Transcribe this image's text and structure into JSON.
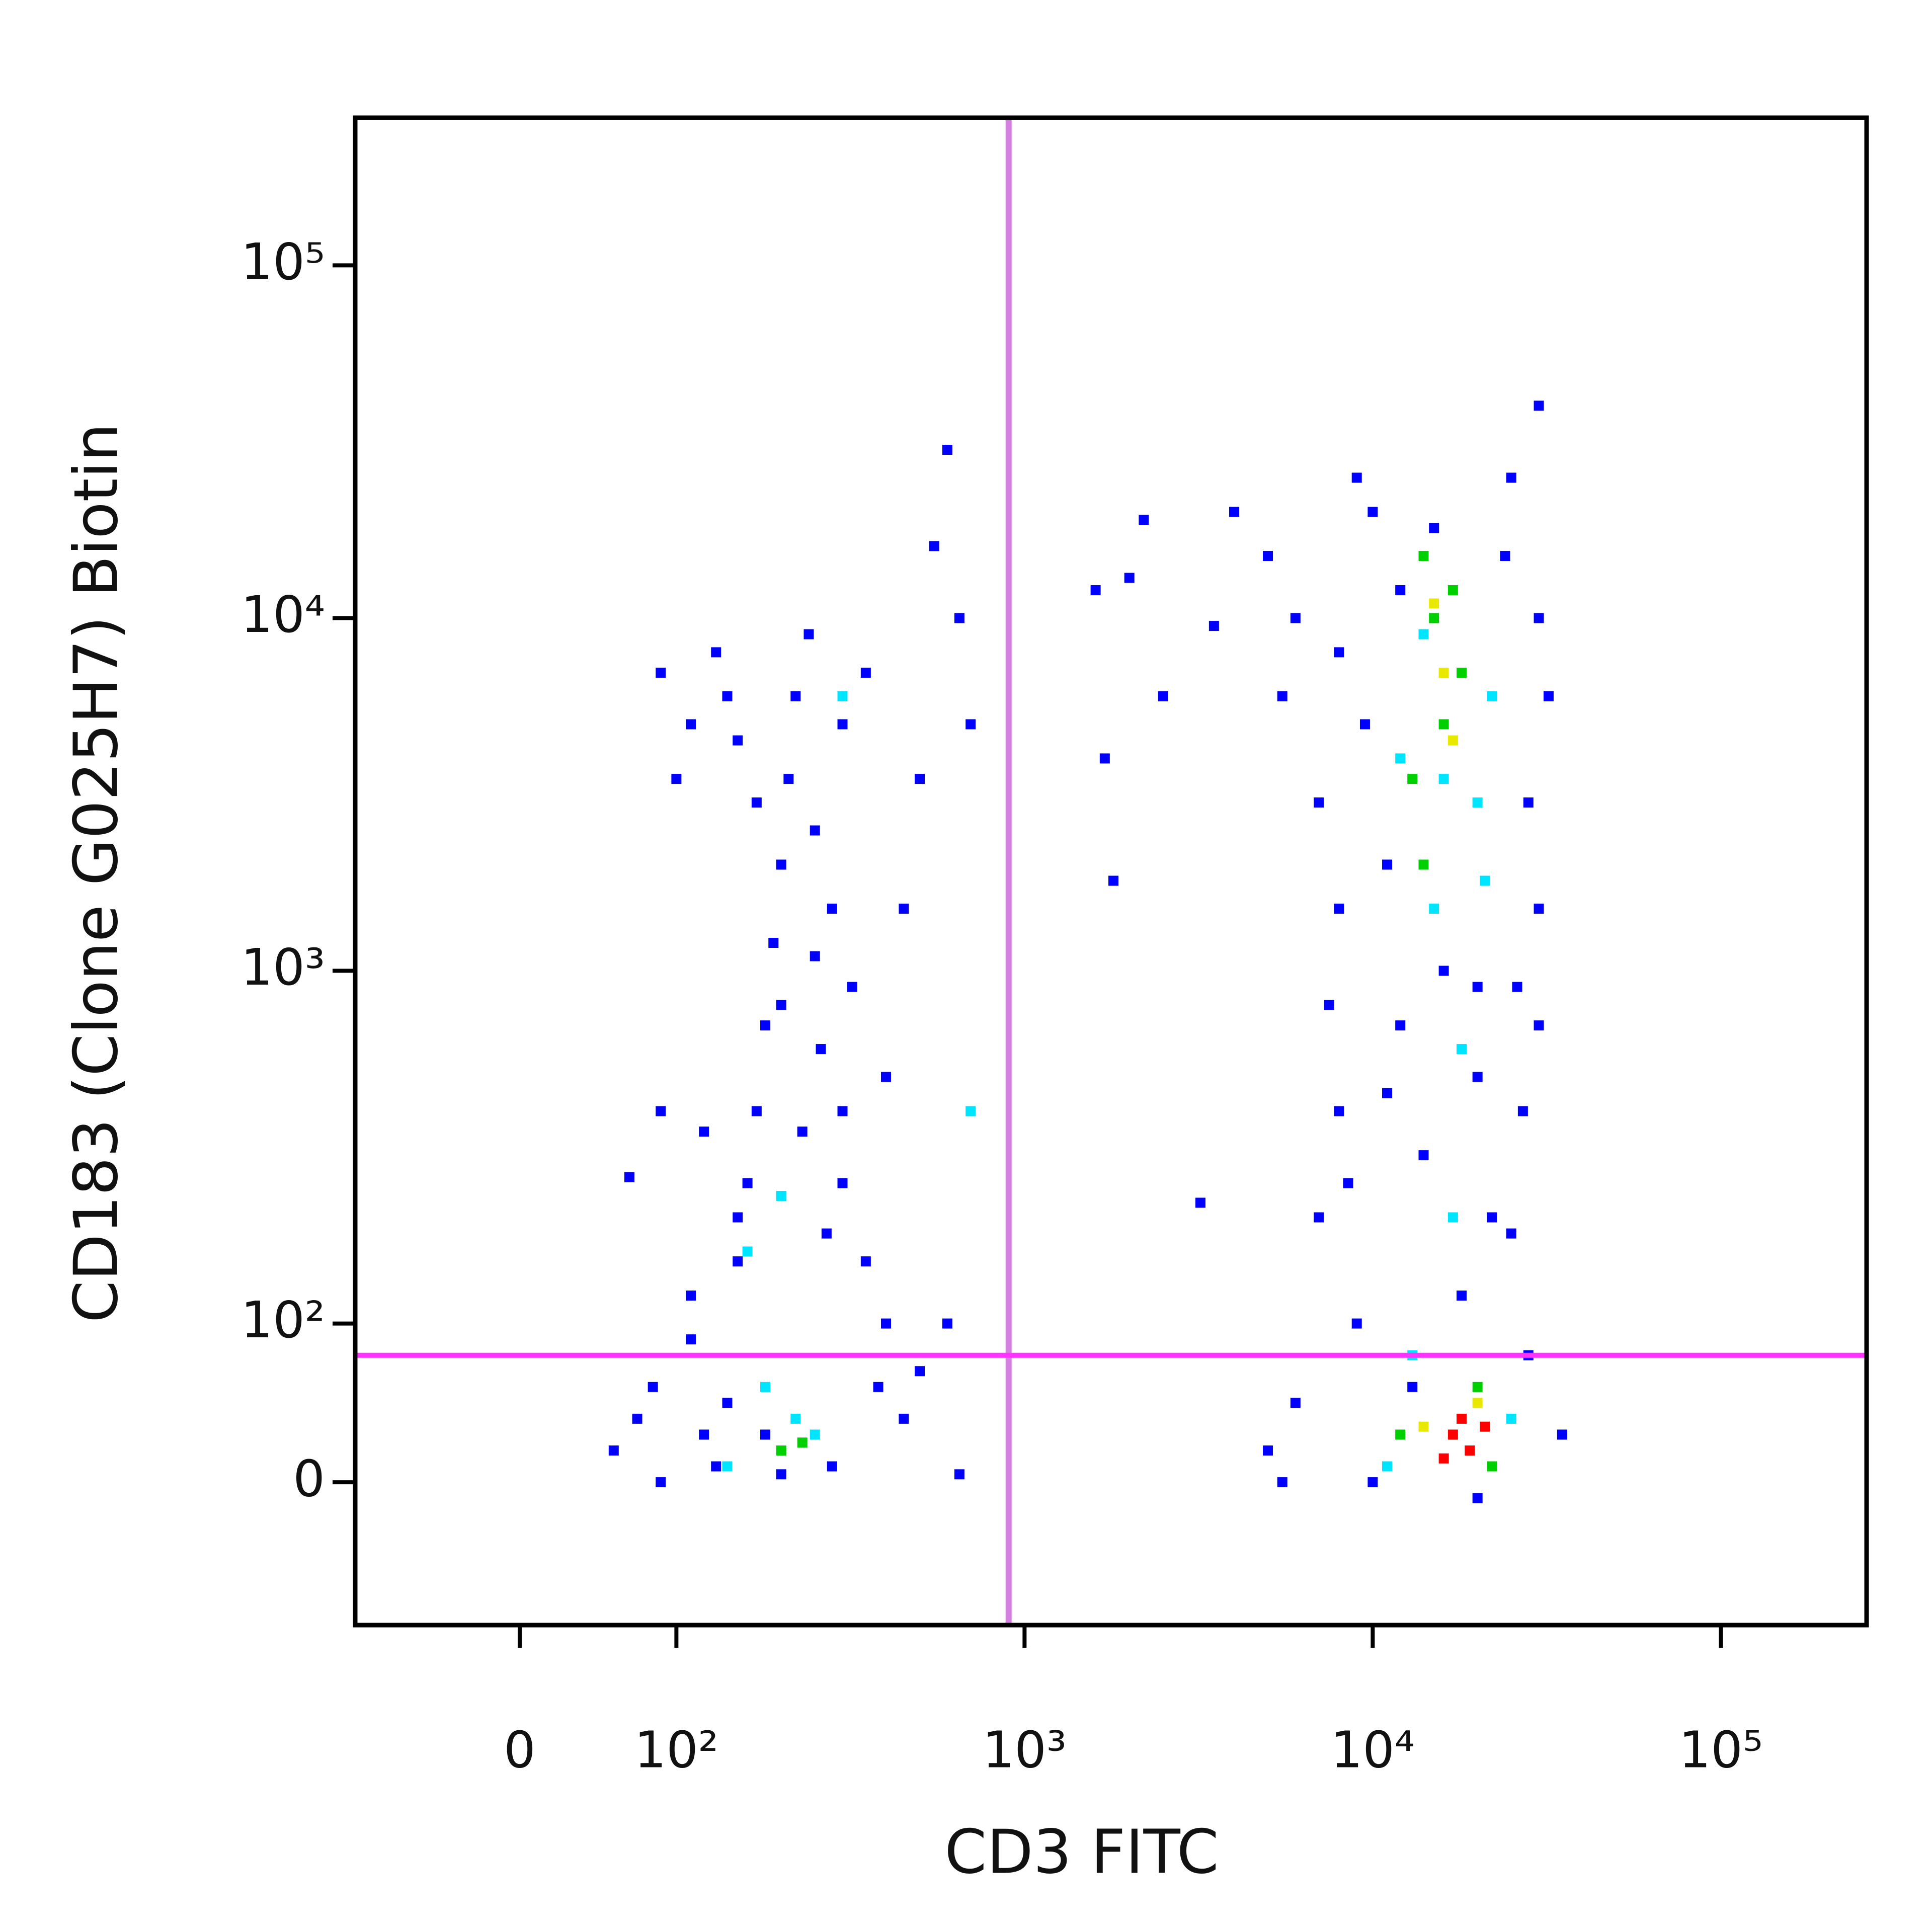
{
  "chart_data": {
    "type": "scatter",
    "xlabel": "CD3 FITC",
    "ylabel": "CD183 (Clone G025H7) Biotin",
    "scale": "biexponential",
    "xlim": [
      -105,
      262144
    ],
    "ylim": [
      -90,
      262144
    ],
    "xticks": [
      0,
      {
        "value": 100,
        "label": "10²"
      },
      {
        "value": 1000,
        "label": "10³"
      },
      {
        "value": 10000,
        "label": "10⁴"
      },
      {
        "value": 100000,
        "label": "10⁵"
      }
    ],
    "yticks": [
      0,
      {
        "value": 100,
        "label": "10²"
      },
      {
        "value": 1000,
        "label": "10³"
      },
      {
        "value": 10000,
        "label": "10⁴"
      },
      {
        "value": 100000,
        "label": "10⁵"
      }
    ],
    "vlines": [
      {
        "x": 900,
        "color": "#d580e0"
      }
    ],
    "hlines": [
      {
        "y": 80,
        "color": "#ff33ff"
      }
    ],
    "series": [
      {
        "color": "#0000ff",
        "x": [
          60,
          75,
          90,
          85,
          110,
          120,
          130,
          140,
          150,
          160,
          170,
          180,
          190,
          200,
          210,
          220,
          240,
          130,
          140,
          110,
          90,
          100,
          150,
          170,
          250,
          300,
          350,
          280,
          320,
          260,
          230,
          300,
          350,
          400,
          380,
          450,
          500,
          280,
          200,
          180,
          150,
          120,
          110,
          90,
          70,
          200,
          250,
          300,
          400,
          270,
          600,
          550,
          650,
          700,
          500,
          450,
          600,
          650,
          1700,
          1600,
          2200,
          2500,
          3500,
          1800,
          3200,
          2000,
          4000,
          5000,
          6000,
          5500,
          7000,
          8000,
          7500,
          8000,
          7000,
          9000,
          6000,
          5000,
          5500,
          8000,
          9000,
          10000,
          12000,
          25000,
          30000,
          32000,
          28000,
          30000,
          26000,
          27000,
          25000,
          28000,
          35000,
          12000,
          14000,
          16000,
          11000,
          20000,
          22000,
          18000,
          13000,
          10000,
          20000,
          30000,
          15000,
          9500,
          24000,
          30000,
          8500,
          11000,
          20000
        ],
        "y": [
          20,
          40,
          0,
          60,
          90,
          30,
          10,
          50,
          150,
          250,
          400,
          700,
          1200,
          2000,
          3500,
          6000,
          9000,
          8000,
          6000,
          5000,
          7000,
          3500,
          4500,
          3000,
          2500,
          5000,
          7000,
          1500,
          900,
          600,
          350,
          250,
          150,
          100,
          60,
          40,
          70,
          10,
          5,
          30,
          200,
          350,
          120,
          400,
          260,
          800,
          1100,
          400,
          500,
          180,
          30000,
          16000,
          10000,
          5000,
          3500,
          1500,
          100,
          5,
          4000,
          12000,
          19000,
          6000,
          9500,
          1800,
          220,
          13000,
          20000,
          15000,
          10000,
          6000,
          3000,
          1500,
          800,
          400,
          200,
          100,
          50,
          20,
          0,
          8000,
          25000,
          20000,
          12000,
          25000,
          10000,
          6000,
          3000,
          1500,
          900,
          400,
          180,
          80,
          30,
          700,
          300,
          1000,
          2000,
          500,
          200,
          120,
          60,
          0,
          -10,
          40000,
          18000,
          5000,
          15000,
          700,
          250,
          450,
          900
        ]
      },
      {
        "color": "#00e5ff",
        "x": [
          140,
          220,
          180,
          200,
          160,
          300,
          700,
          250,
          14000,
          12000,
          20000,
          18000,
          15000,
          22000,
          13000,
          25000,
          11000,
          17000,
          21000,
          16000
        ],
        "y": [
          10,
          40,
          60,
          230,
          160,
          6000,
          400,
          30,
          9000,
          4000,
          3000,
          600,
          1500,
          6000,
          80,
          40,
          10,
          200,
          1800,
          3500
        ]
      },
      {
        "color": "#00d000",
        "x": [
          200,
          230,
          14000,
          15000,
          16000,
          13000,
          18000,
          12000,
          20000,
          22000,
          14000,
          17000
        ],
        "y": [
          20,
          25,
          15000,
          10000,
          5000,
          3500,
          7000,
          30,
          60,
          10,
          2000,
          12000
        ]
      },
      {
        "color": "#e8e800",
        "x": [
          16000,
          17000,
          15000,
          20000,
          14000
        ],
        "y": [
          7000,
          4500,
          11000,
          50,
          35
        ]
      },
      {
        "color": "#ff0000",
        "x": [
          17000,
          19000,
          18000,
          16000,
          21000
        ],
        "y": [
          30,
          20,
          40,
          15,
          35
        ]
      }
    ]
  }
}
